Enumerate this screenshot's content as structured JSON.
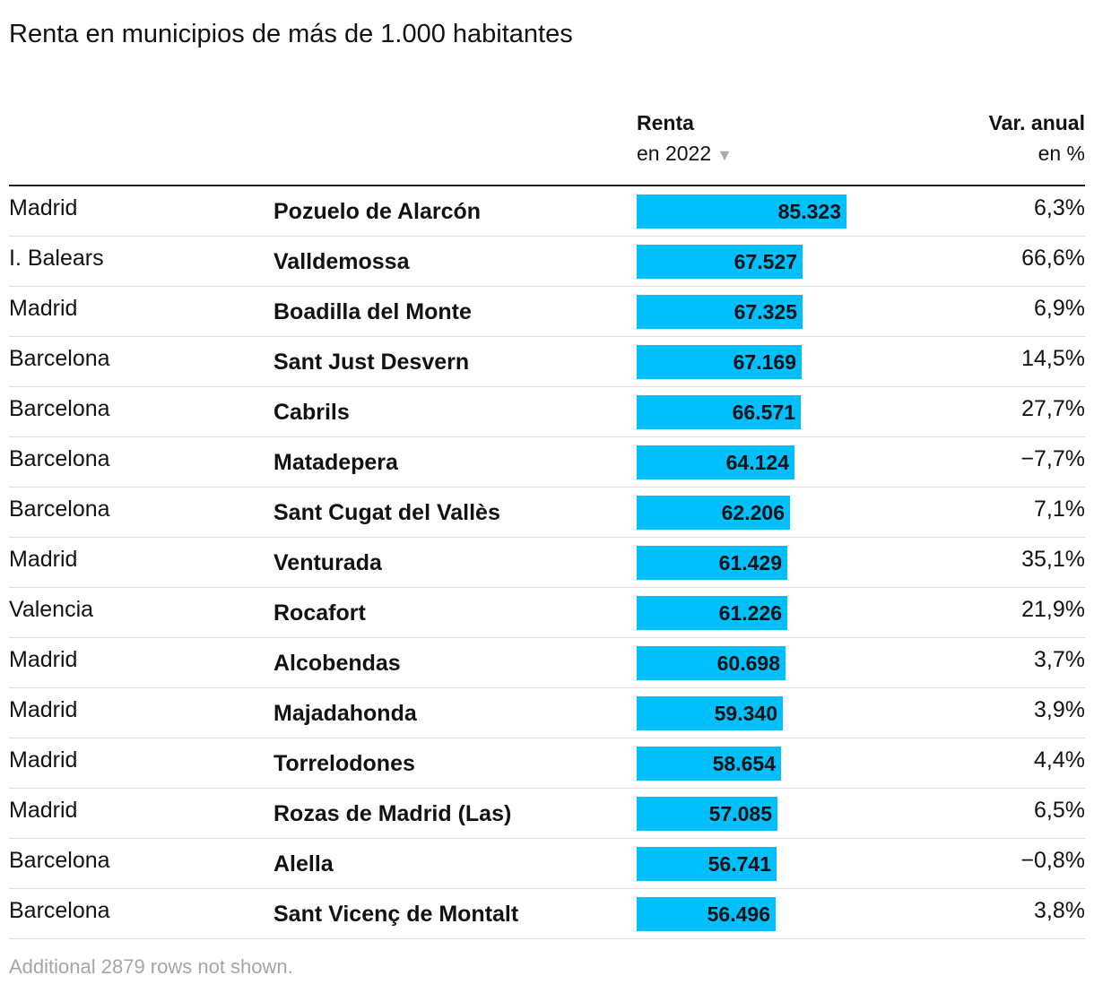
{
  "chart_data": {
    "type": "table",
    "title": "Renta en municipios de más de 1.000 habitantes",
    "columns": {
      "renta": {
        "label": "Renta",
        "sublabel": "en 2022"
      },
      "var": {
        "label": "Var. anual",
        "sublabel": "en %"
      }
    },
    "sort_indicator": "▼",
    "bar_color": "#00bfff",
    "bar_scale_max": 85323,
    "rows": [
      {
        "provincia": "Madrid",
        "municipio": "Pozuelo de Alarcón",
        "renta": 85323,
        "renta_label": "85.323",
        "var": "6,3%"
      },
      {
        "provincia": "I. Balears",
        "municipio": "Valldemossa",
        "renta": 67527,
        "renta_label": "67.527",
        "var": "66,6%"
      },
      {
        "provincia": "Madrid",
        "municipio": "Boadilla del Monte",
        "renta": 67325,
        "renta_label": "67.325",
        "var": "6,9%"
      },
      {
        "provincia": "Barcelona",
        "municipio": "Sant Just Desvern",
        "renta": 67169,
        "renta_label": "67.169",
        "var": "14,5%"
      },
      {
        "provincia": "Barcelona",
        "municipio": "Cabrils",
        "renta": 66571,
        "renta_label": "66.571",
        "var": "27,7%"
      },
      {
        "provincia": "Barcelona",
        "municipio": "Matadepera",
        "renta": 64124,
        "renta_label": "64.124",
        "var": "−7,7%"
      },
      {
        "provincia": "Barcelona",
        "municipio": "Sant Cugat del Vallès",
        "renta": 62206,
        "renta_label": "62.206",
        "var": "7,1%"
      },
      {
        "provincia": "Madrid",
        "municipio": "Venturada",
        "renta": 61429,
        "renta_label": "61.429",
        "var": "35,1%"
      },
      {
        "provincia": "Valencia",
        "municipio": "Rocafort",
        "renta": 61226,
        "renta_label": "61.226",
        "var": "21,9%"
      },
      {
        "provincia": "Madrid",
        "municipio": "Alcobendas",
        "renta": 60698,
        "renta_label": "60.698",
        "var": "3,7%"
      },
      {
        "provincia": "Madrid",
        "municipio": "Majadahonda",
        "renta": 59340,
        "renta_label": "59.340",
        "var": "3,9%"
      },
      {
        "provincia": "Madrid",
        "municipio": "Torrelodones",
        "renta": 58654,
        "renta_label": "58.654",
        "var": "4,4%"
      },
      {
        "provincia": "Madrid",
        "municipio": "Rozas de Madrid (Las)",
        "renta": 57085,
        "renta_label": "57.085",
        "var": "6,5%"
      },
      {
        "provincia": "Barcelona",
        "municipio": "Alella",
        "renta": 56741,
        "renta_label": "56.741",
        "var": "−0,8%"
      },
      {
        "provincia": "Barcelona",
        "municipio": "Sant Vicenç de Montalt",
        "renta": 56496,
        "renta_label": "56.496",
        "var": "3,8%"
      }
    ],
    "footer": "Additional 2879 rows not shown."
  }
}
